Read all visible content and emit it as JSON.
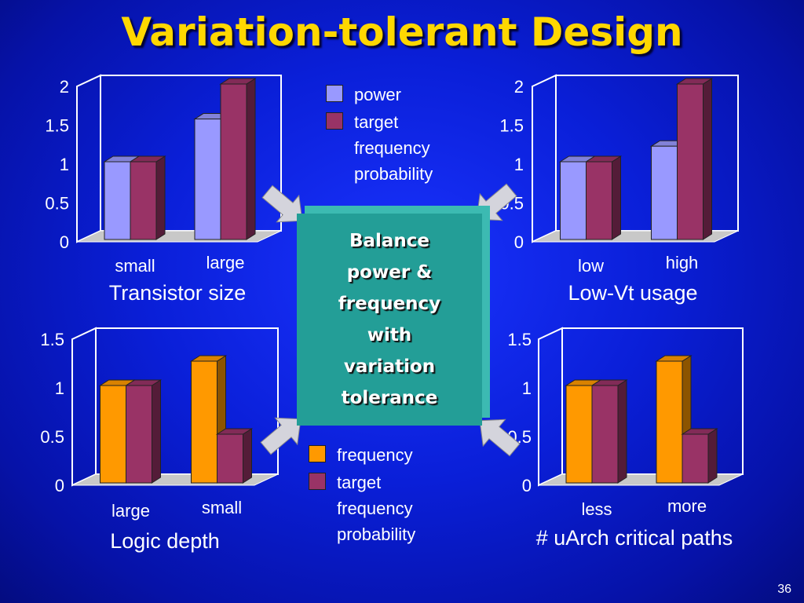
{
  "title": "Variation-tolerant Design",
  "center_box": "Balance\npower &\nfrequency\nwith\nvariation\ntolerance",
  "page_number": "36",
  "legends": {
    "top": [
      {
        "label": "power",
        "color": "#9999ff"
      },
      {
        "label": "target\nfrequency\nprobability",
        "color": "#993366"
      }
    ],
    "bottom": [
      {
        "label": "frequency",
        "color": "#ff9900"
      },
      {
        "label": "target\nfrequency\nprobability",
        "color": "#993366"
      }
    ]
  },
  "colors": {
    "background": "#0a1fd8",
    "title": "#ffd700",
    "center_box": "#239e97",
    "arrow": "#d4d4dc"
  },
  "chart_data": [
    {
      "type": "bar",
      "categories": [
        "small",
        "large"
      ],
      "series": [
        {
          "name": "power",
          "values": [
            1.0,
            1.55
          ],
          "color": "#9999ff"
        },
        {
          "name": "target frequency probability",
          "values": [
            1.0,
            2.0
          ],
          "color": "#993366"
        }
      ],
      "ticks": [
        "0",
        "0.5",
        "1",
        "1.5",
        "2"
      ],
      "ylim": [
        0,
        2
      ],
      "xlabel": "Transistor size"
    },
    {
      "type": "bar",
      "categories": [
        "low",
        "high"
      ],
      "series": [
        {
          "name": "power",
          "values": [
            1.0,
            1.2
          ],
          "color": "#9999ff"
        },
        {
          "name": "target frequency probability",
          "values": [
            1.0,
            2.0
          ],
          "color": "#993366"
        }
      ],
      "ticks": [
        "0",
        "0.5",
        "1",
        "1.5",
        "2"
      ],
      "ylim": [
        0,
        2
      ],
      "xlabel": "Low-Vt usage"
    },
    {
      "type": "bar",
      "categories": [
        "large",
        "small"
      ],
      "series": [
        {
          "name": "frequency",
          "values": [
            1.0,
            1.25
          ],
          "color": "#ff9900"
        },
        {
          "name": "target frequency probability",
          "values": [
            1.0,
            0.5
          ],
          "color": "#993366"
        }
      ],
      "ticks": [
        "0",
        "0.5",
        "1",
        "1.5"
      ],
      "ylim": [
        0,
        1.5
      ],
      "xlabel": "Logic depth"
    },
    {
      "type": "bar",
      "categories": [
        "less",
        "more"
      ],
      "series": [
        {
          "name": "frequency",
          "values": [
            1.0,
            1.25
          ],
          "color": "#ff9900"
        },
        {
          "name": "target frequency probability",
          "values": [
            1.0,
            0.5
          ],
          "color": "#993366"
        }
      ],
      "ticks": [
        "0",
        "0.5",
        "1",
        "1.5"
      ],
      "ylim": [
        0,
        1.5
      ],
      "xlabel": "# uArch critical paths"
    }
  ]
}
